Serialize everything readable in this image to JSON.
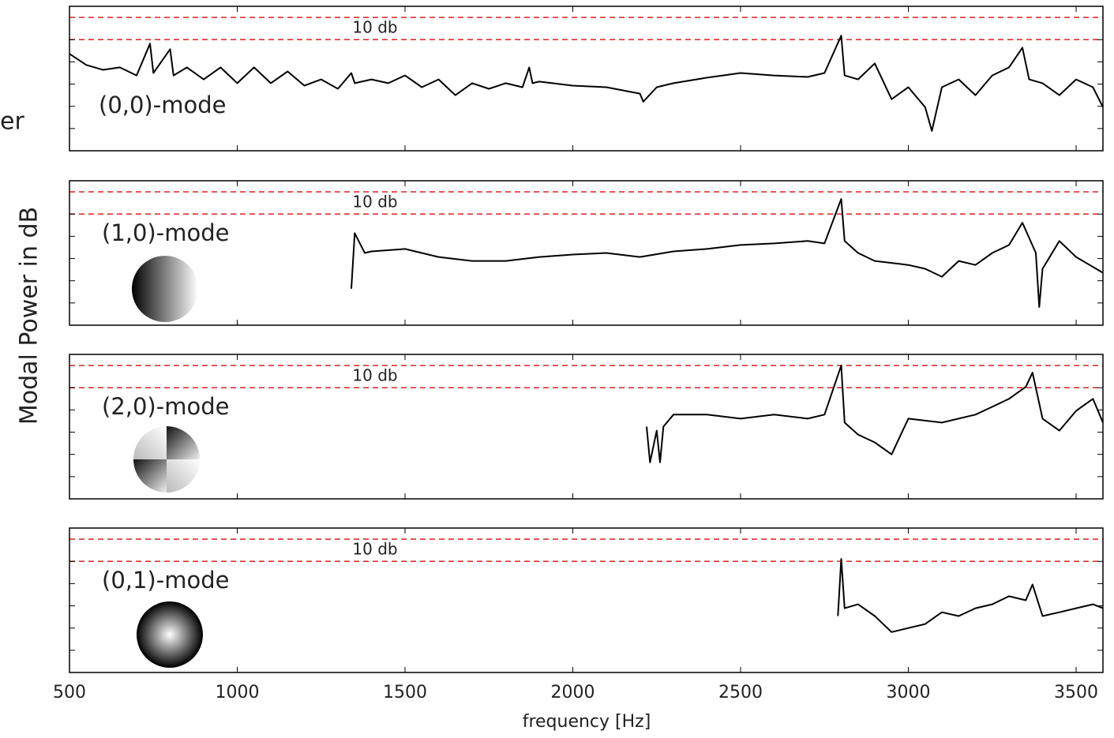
{
  "clipped_text": "er",
  "chart_data": [
    {
      "type": "line",
      "label": "(0,0)-mode",
      "ylabel": "Modal Power in dB",
      "reference_lines": [
        0,
        -10
      ],
      "reference_label": "10 db",
      "reference_color": "#e03030",
      "color": "#000000",
      "xlim": [
        500,
        3580
      ],
      "xticks": [
        500,
        1000,
        1500,
        2000,
        2500,
        3000,
        3500
      ],
      "ylim": [
        -60,
        5
      ],
      "yticks": [
        -10,
        -20,
        -30,
        -40,
        -50
      ],
      "x": [
        500,
        550,
        600,
        650,
        700,
        740,
        750,
        800,
        810,
        850,
        900,
        950,
        1000,
        1050,
        1100,
        1150,
        1200,
        1250,
        1300,
        1340,
        1350,
        1400,
        1450,
        1500,
        1550,
        1600,
        1650,
        1700,
        1750,
        1800,
        1850,
        1870,
        1880,
        1900,
        2000,
        2100,
        2200,
        2210,
        2250,
        2300,
        2400,
        2500,
        2600,
        2700,
        2750,
        2800,
        2810,
        2850,
        2900,
        2950,
        3000,
        3050,
        3070,
        3100,
        3150,
        3200,
        3250,
        3300,
        3340,
        3360,
        3400,
        3450,
        3500,
        3550,
        3580
      ],
      "values": [
        -16.4,
        -21.4,
        -23.6,
        -22.5,
        -26.1,
        -11.8,
        -25,
        -14.3,
        -26.1,
        -22.5,
        -27.9,
        -22.5,
        -29.6,
        -22.5,
        -29.6,
        -24.3,
        -30.7,
        -27.9,
        -32.1,
        -25,
        -29.6,
        -27.9,
        -29.6,
        -26.1,
        -31.4,
        -27.9,
        -35,
        -29.6,
        -32.1,
        -29.6,
        -31.4,
        -22.5,
        -29.6,
        -28.9,
        -30.7,
        -31.4,
        -34.3,
        -37.9,
        -31.4,
        -29.6,
        -27.1,
        -25,
        -26.1,
        -26.8,
        -25,
        -8.2,
        -26.1,
        -27.9,
        -20.7,
        -36.8,
        -31.4,
        -40.4,
        -51.1,
        -31.4,
        -27.9,
        -35,
        -26.1,
        -22.5,
        -13.6,
        -27.9,
        -29.6,
        -35,
        -27.9,
        -31.4,
        -40.4
      ]
    },
    {
      "type": "line",
      "label": "(1,0)-mode",
      "reference_lines": [
        0,
        -10
      ],
      "reference_label": "10 db",
      "reference_color": "#e03030",
      "color": "#000000",
      "xlim": [
        500,
        3580
      ],
      "xticks": [
        500,
        1000,
        1500,
        2000,
        2500,
        3000,
        3500
      ],
      "ylim": [
        -60,
        5
      ],
      "yticks": [
        -10,
        -20,
        -30,
        -40,
        -50
      ],
      "x": [
        1340,
        1350,
        1380,
        1400,
        1500,
        1600,
        1700,
        1800,
        1900,
        2000,
        2100,
        2200,
        2300,
        2400,
        2500,
        2600,
        2700,
        2750,
        2800,
        2810,
        2850,
        2900,
        3000,
        3050,
        3100,
        3150,
        3200,
        3250,
        3300,
        3340,
        3380,
        3390,
        3400,
        3450,
        3500,
        3580
      ],
      "values": [
        -43.6,
        -18.6,
        -27.5,
        -26.8,
        -25.7,
        -29.3,
        -31.1,
        -31.1,
        -29.3,
        -28.2,
        -27.5,
        -29.3,
        -26.8,
        -25.7,
        -23.9,
        -23.2,
        -22.1,
        -23.2,
        -3.2,
        -22.1,
        -27.5,
        -31.1,
        -32.9,
        -34.6,
        -38.2,
        -31.1,
        -32.9,
        -27.5,
        -23.9,
        -13.9,
        -27.5,
        -51.8,
        -34.6,
        -22.1,
        -29.3,
        -36.4
      ]
    },
    {
      "type": "line",
      "label": "(2,0)-mode",
      "reference_lines": [
        0,
        -10
      ],
      "reference_label": "10 db",
      "reference_color": "#e03030",
      "color": "#000000",
      "xlim": [
        500,
        3580
      ],
      "xticks": [
        500,
        1000,
        1500,
        2000,
        2500,
        3000,
        3500
      ],
      "ylim": [
        -60,
        5
      ],
      "yticks": [
        -10,
        -20,
        -30,
        -40,
        -50
      ],
      "x": [
        2220,
        2230,
        2250,
        2260,
        2270,
        2300,
        2400,
        2500,
        2600,
        2700,
        2750,
        2800,
        2810,
        2850,
        2900,
        2950,
        3000,
        3100,
        3200,
        3250,
        3300,
        3350,
        3370,
        3400,
        3450,
        3500,
        3550,
        3580
      ],
      "values": [
        -27.5,
        -43.6,
        -29.3,
        -43.6,
        -27.5,
        -22.1,
        -22.1,
        -23.9,
        -22.1,
        -23.9,
        -22.1,
        0,
        -25.7,
        -31.1,
        -34.6,
        -40,
        -23.9,
        -25.7,
        -22.1,
        -18.6,
        -15,
        -9.6,
        -3.2,
        -23.9,
        -29.3,
        -20.4,
        -15,
        -25.7
      ]
    },
    {
      "type": "line",
      "label": "(0,1)-mode",
      "xlabel": "frequency [Hz]",
      "reference_lines": [
        0,
        -10
      ],
      "reference_label": "10 db",
      "reference_color": "#e03030",
      "color": "#000000",
      "xlim": [
        500,
        3580
      ],
      "xticks": [
        500,
        1000,
        1500,
        2000,
        2500,
        3000,
        3500
      ],
      "ylim": [
        -60,
        5
      ],
      "yticks": [
        -10,
        -20,
        -30,
        -40,
        -50
      ],
      "x": [
        2790,
        2800,
        2810,
        2850,
        2900,
        2950,
        3000,
        3050,
        3100,
        3150,
        3200,
        3250,
        3300,
        3350,
        3370,
        3400,
        3450,
        3500,
        3550,
        3580
      ],
      "values": [
        -34.6,
        -8.9,
        -31.1,
        -29.3,
        -34.6,
        -41.8,
        -40,
        -38.2,
        -32.9,
        -34.6,
        -31.1,
        -29.3,
        -25.7,
        -27.5,
        -20.4,
        -34.6,
        -32.9,
        -31.1,
        -29.3,
        -31.1
      ]
    }
  ]
}
